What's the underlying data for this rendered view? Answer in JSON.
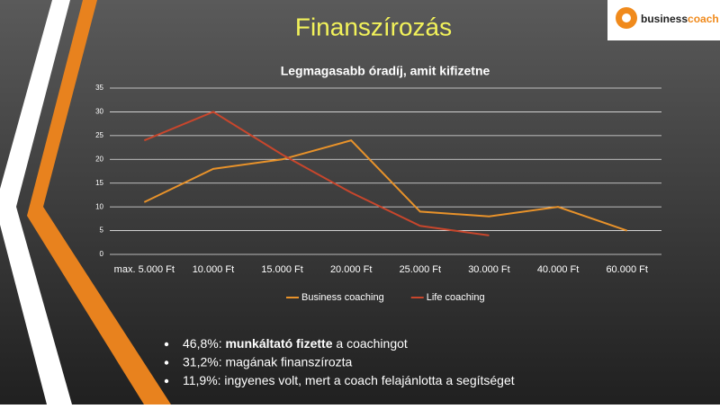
{
  "header": {
    "title": "Finanszírozás",
    "logo": {
      "part_1": "business",
      "part_2": "coach"
    }
  },
  "chart_data": {
    "type": "line",
    "title": "Legmagasabb óradíj, amit kifizetne",
    "categories": [
      "max. 5.000 Ft",
      "10.000 Ft",
      "15.000 Ft",
      "20.000 Ft",
      "25.000 Ft",
      "30.000 Ft",
      "40.000 Ft",
      "60.000 Ft"
    ],
    "series": [
      {
        "name": "Business coaching",
        "color": "#e8922a",
        "values": [
          11,
          18,
          20,
          24,
          9,
          8,
          10,
          5
        ]
      },
      {
        "name": "Life coaching",
        "color": "#c8462c",
        "values": [
          24,
          30,
          21,
          13,
          6,
          4,
          null,
          null
        ]
      }
    ],
    "ylim": [
      0,
      35
    ],
    "yticks": [
      0,
      5,
      10,
      15,
      20,
      25,
      30,
      35
    ],
    "grid": true,
    "legend": "bottom"
  },
  "bullets": [
    {
      "parts": [
        "46,8%: ",
        "munkáltató fizette",
        " a coachingot"
      ]
    },
    {
      "parts": [
        "31,2%: magának finanszírozta"
      ]
    },
    {
      "parts": [
        "11,9%: ingyenes volt, mert a coach felajánlotta  a segítséget"
      ]
    }
  ]
}
